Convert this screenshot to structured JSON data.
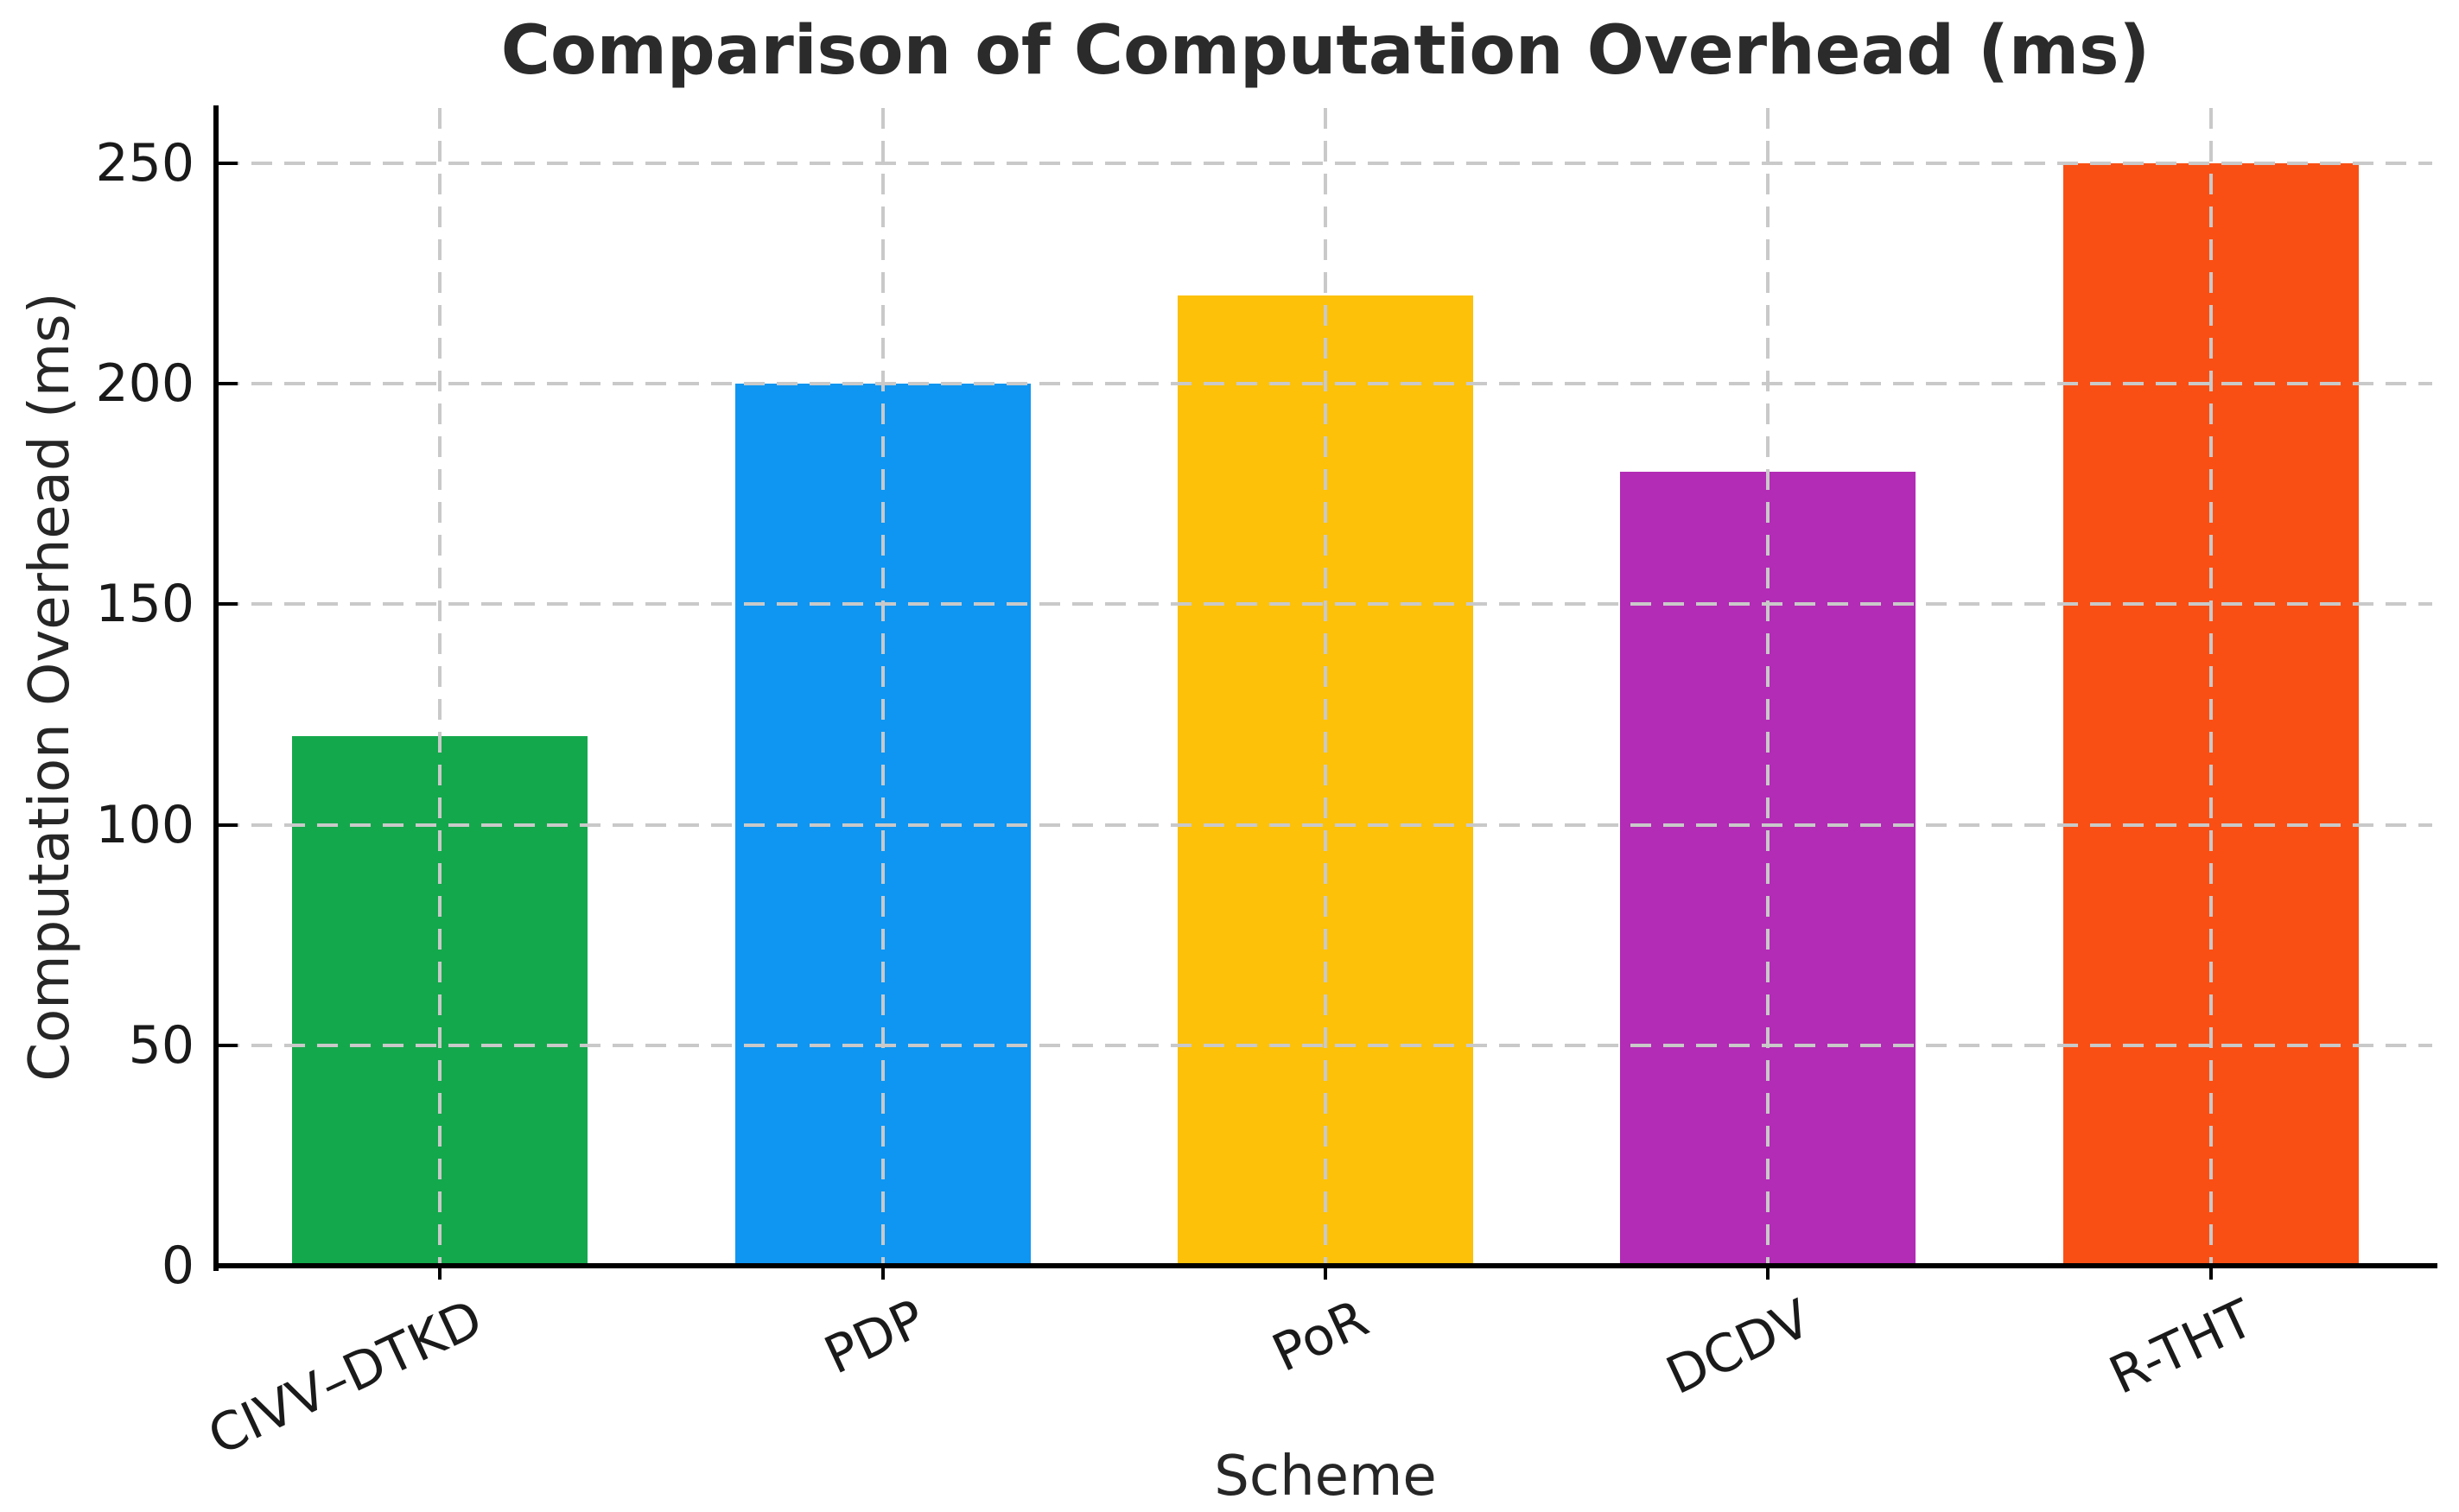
{
  "chart_data": {
    "type": "bar",
    "title": "Comparison of Computation Overhead (ms)",
    "xlabel": "Scheme",
    "ylabel": "Computation Overhead (ms)",
    "categories": [
      "CIVV–DTKD",
      "PDP",
      "PoR",
      "DCDV",
      "R-THT"
    ],
    "values": [
      120,
      200,
      220,
      180,
      250
    ],
    "bar_colors": [
      "#14a84c",
      "#0e96f2",
      "#fcc108",
      "#b22cb5",
      "#fa4f14"
    ],
    "ylim": [
      0,
      262.5
    ],
    "yticks": [
      0,
      50,
      100,
      150,
      200,
      250
    ],
    "grid": "dashed horizontal and vertical gridlines drawn over bars",
    "legend": "none",
    "x_tick_rotation_deg": 25
  },
  "style": {
    "background_color": "#ffffff",
    "grid_color": "#c9c9c9",
    "spine_color": "#000000",
    "text_color": "#262626",
    "title_color": "#2b2b2b"
  }
}
